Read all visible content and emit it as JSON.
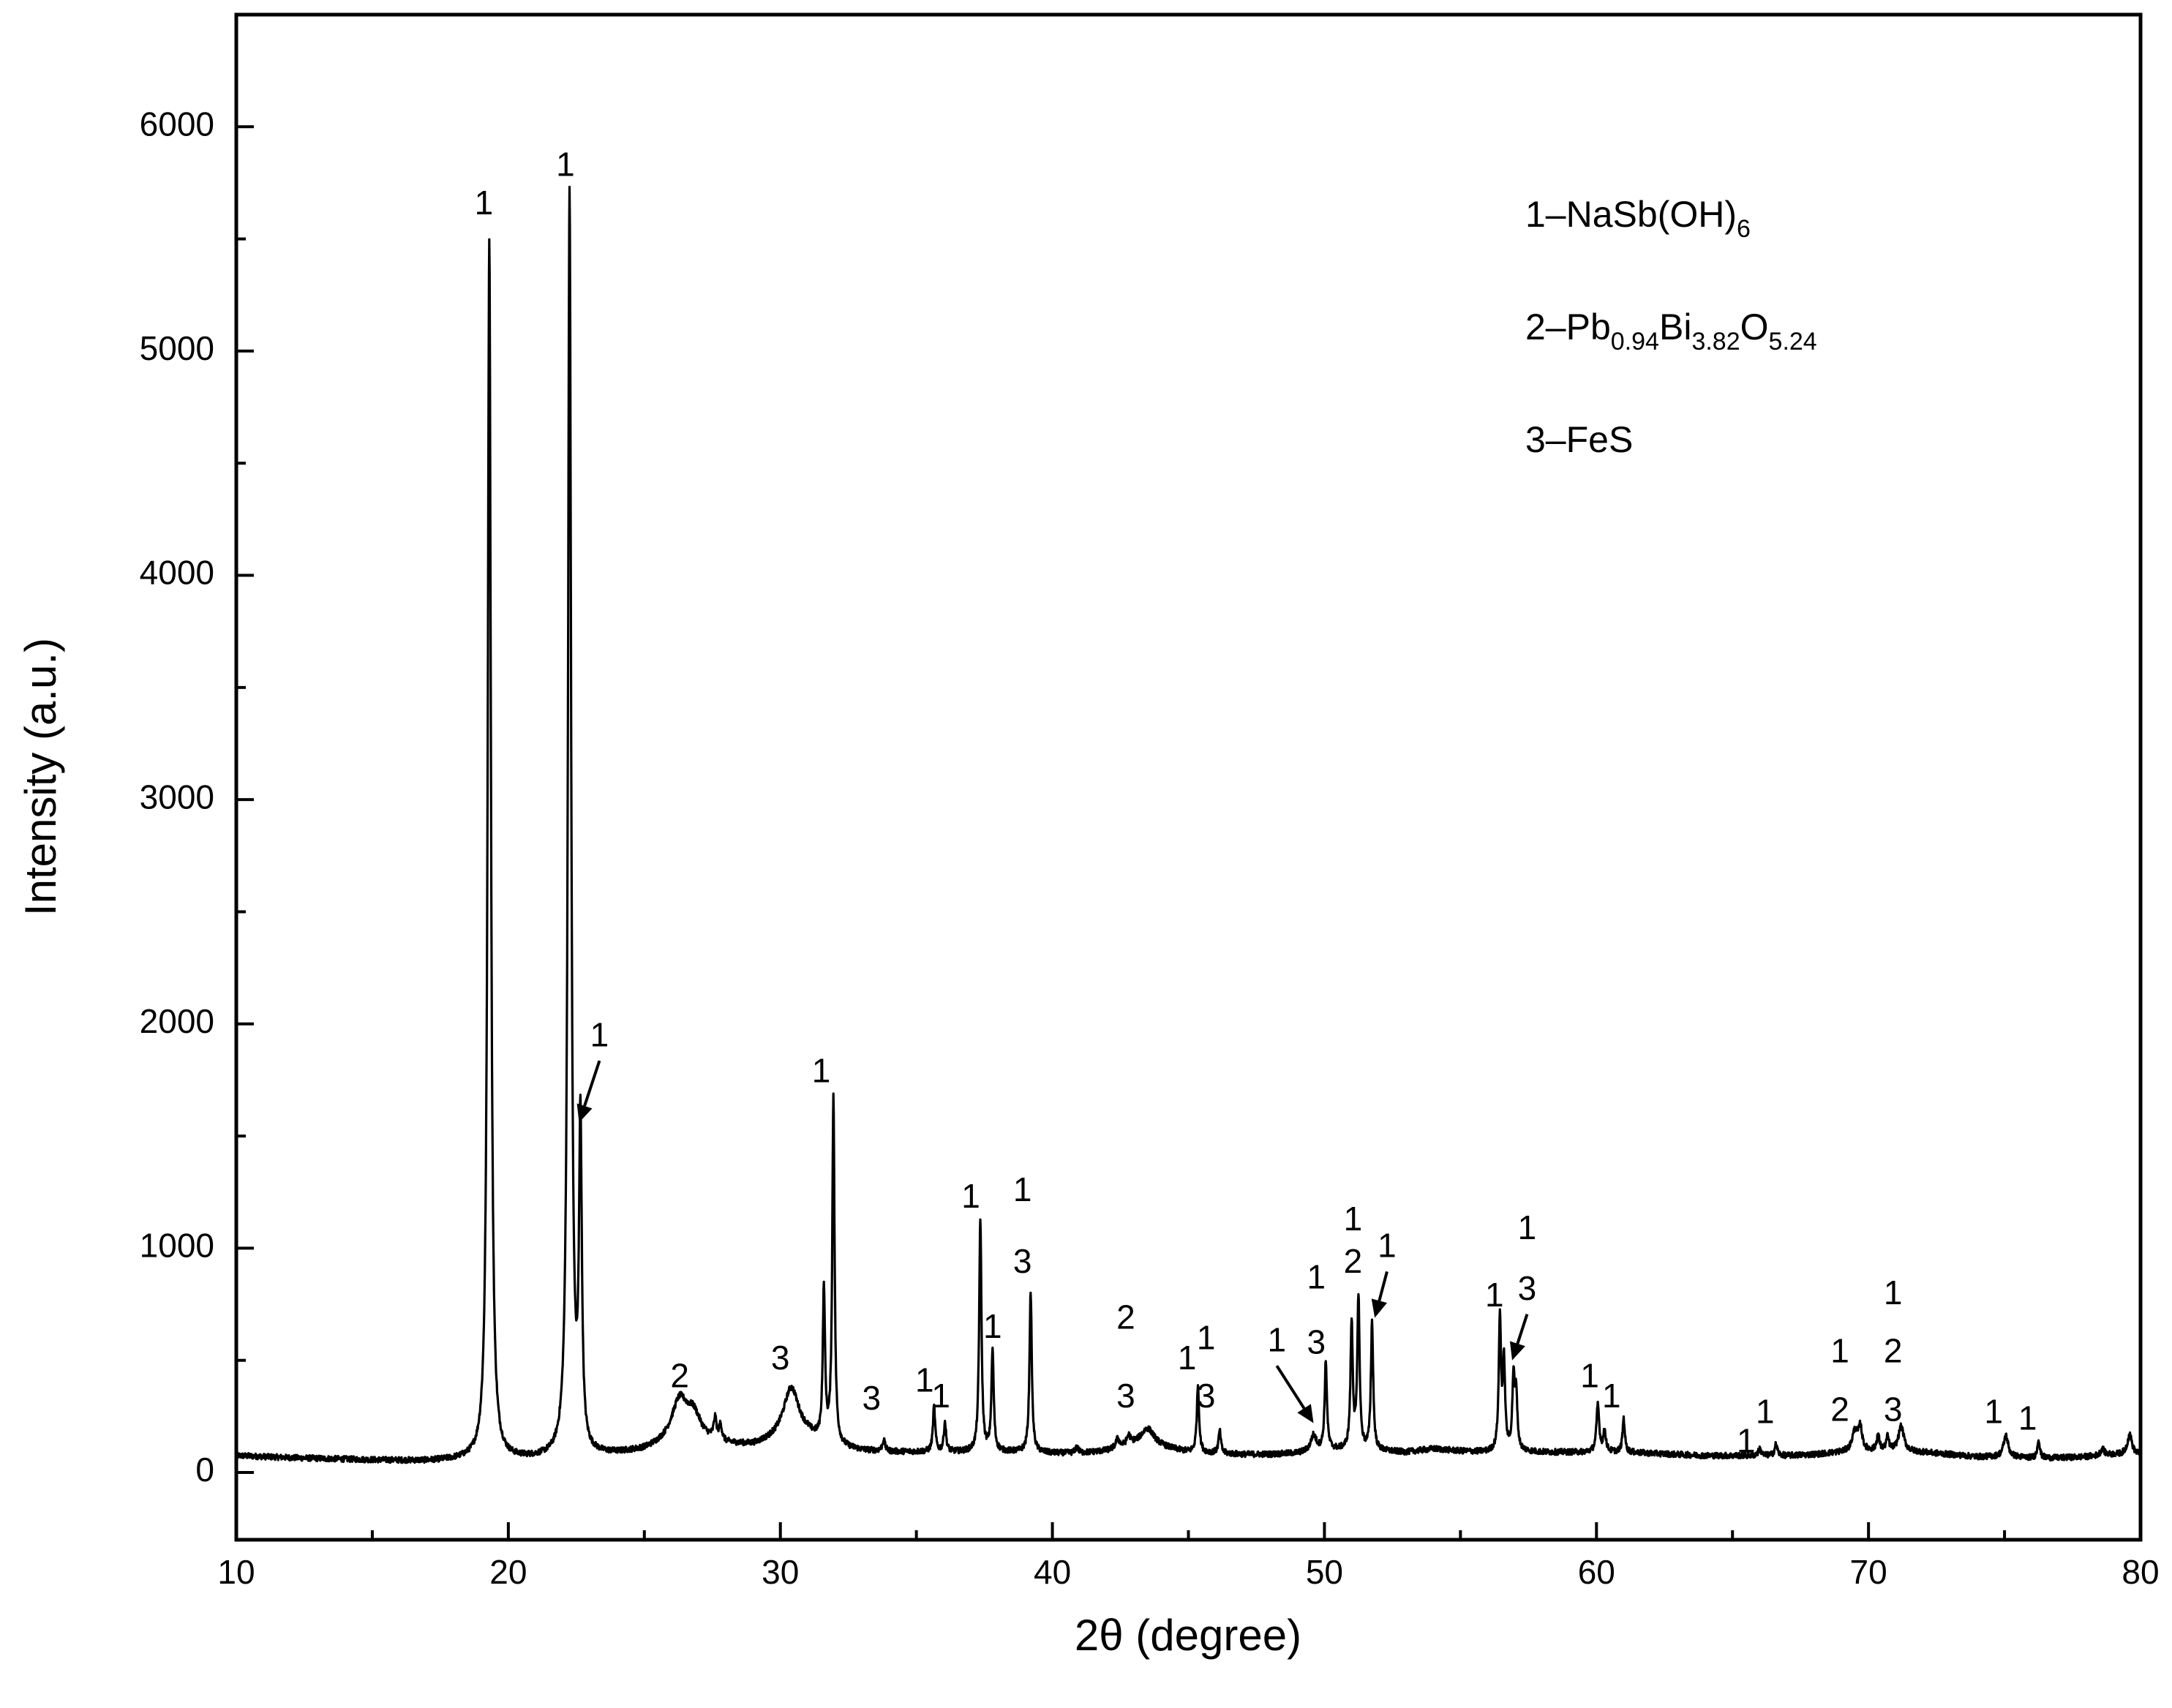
{
  "chart_data": {
    "type": "line",
    "title": "",
    "xlabel": "2θ (degree)",
    "ylabel": "Intensity (a.u.)",
    "xlim": [
      10,
      80
    ],
    "ylim": [
      -300,
      6500
    ],
    "x_ticks": [
      10,
      20,
      30,
      40,
      50,
      60,
      70,
      80
    ],
    "y_ticks": [
      0,
      1000,
      2000,
      3000,
      4000,
      5000,
      6000
    ],
    "grid": false,
    "legend": {
      "position": "top-right",
      "entries": [
        {
          "label": "1–NaSb(OH)",
          "parts": [
            [
              "1–NaSb(OH)",
              ""
            ],
            [
              "6",
              "sub"
            ]
          ]
        },
        {
          "label": "2–Pb0.94Bi3.82O5.24",
          "parts": [
            [
              "2–Pb",
              ""
            ],
            [
              "0.94",
              "sub"
            ],
            [
              "Bi",
              ""
            ],
            [
              "3.82",
              "sub"
            ],
            [
              "O",
              ""
            ],
            [
              "5.24",
              "sub"
            ]
          ]
        },
        {
          "label": "3–FeS",
          "parts": [
            [
              "3–FeS",
              ""
            ]
          ]
        }
      ]
    },
    "baseline": [
      [
        10,
        75
      ],
      [
        12,
        65
      ],
      [
        15,
        55
      ],
      [
        17,
        50
      ],
      [
        18.5,
        55
      ],
      [
        20,
        55
      ],
      [
        21.5,
        60
      ],
      [
        23,
        70
      ],
      [
        24,
        80
      ],
      [
        25,
        95
      ],
      [
        26,
        130
      ],
      [
        27,
        140
      ],
      [
        28,
        120
      ],
      [
        29,
        115
      ],
      [
        30,
        140
      ],
      [
        31,
        150
      ],
      [
        32,
        110
      ],
      [
        33,
        95
      ],
      [
        34,
        90
      ],
      [
        35,
        90
      ],
      [
        36,
        90
      ],
      [
        37,
        90
      ],
      [
        38,
        90
      ],
      [
        39,
        90
      ],
      [
        40,
        85
      ],
      [
        41,
        85
      ],
      [
        42,
        95
      ],
      [
        43,
        120
      ],
      [
        44,
        110
      ],
      [
        45,
        90
      ],
      [
        46,
        85
      ],
      [
        47,
        80
      ],
      [
        48,
        80
      ],
      [
        49,
        85
      ],
      [
        50,
        100
      ],
      [
        51,
        100
      ],
      [
        52,
        95
      ],
      [
        53,
        90
      ],
      [
        54,
        105
      ],
      [
        55,
        95
      ],
      [
        56,
        90
      ],
      [
        57,
        95
      ],
      [
        58,
        90
      ],
      [
        59,
        90
      ],
      [
        60,
        90
      ],
      [
        61,
        90
      ],
      [
        62,
        85
      ],
      [
        63,
        80
      ],
      [
        64,
        75
      ],
      [
        65,
        75
      ],
      [
        66,
        75
      ],
      [
        67,
        75
      ],
      [
        68,
        80
      ],
      [
        69,
        90
      ],
      [
        70,
        95
      ],
      [
        71,
        95
      ],
      [
        72,
        90
      ],
      [
        73,
        80
      ],
      [
        74,
        70
      ],
      [
        75,
        70
      ],
      [
        76,
        65
      ],
      [
        77,
        65
      ],
      [
        78,
        70
      ],
      [
        79,
        80
      ],
      [
        80,
        80
      ]
    ],
    "peaks": [
      [
        19.3,
        5450,
        0.07
      ],
      [
        22.25,
        5630,
        0.07
      ],
      [
        22.65,
        1450,
        0.06
      ],
      [
        26.3,
        180,
        0.35
      ],
      [
        26.8,
        100,
        0.3
      ],
      [
        27.6,
        90,
        0.06
      ],
      [
        27.8,
        70,
        0.06
      ],
      [
        30.4,
        230,
        0.35
      ],
      [
        31.6,
        670,
        0.05
      ],
      [
        31.95,
        1550,
        0.05
      ],
      [
        33.8,
        50,
        0.06
      ],
      [
        35.65,
        200,
        0.05
      ],
      [
        36.05,
        130,
        0.05
      ],
      [
        37.35,
        1040,
        0.05
      ],
      [
        37.8,
        450,
        0.05
      ],
      [
        39.2,
        720,
        0.05
      ],
      [
        40.9,
        30,
        0.06
      ],
      [
        42.4,
        40,
        0.08
      ],
      [
        42.8,
        40,
        0.08
      ],
      [
        43.5,
        80,
        0.3
      ],
      [
        45.35,
        300,
        0.05
      ],
      [
        46.15,
        100,
        0.05
      ],
      [
        49.6,
        70,
        0.12
      ],
      [
        50.05,
        390,
        0.05
      ],
      [
        51.0,
        560,
        0.05
      ],
      [
        51.25,
        680,
        0.05
      ],
      [
        51.75,
        570,
        0.05
      ],
      [
        56.45,
        590,
        0.05
      ],
      [
        56.6,
        380,
        0.05
      ],
      [
        56.95,
        320,
        0.05
      ],
      [
        57.05,
        240,
        0.05
      ],
      [
        60.05,
        210,
        0.06
      ],
      [
        60.3,
        90,
        0.06
      ],
      [
        61.0,
        150,
        0.05
      ],
      [
        66.0,
        30,
        0.06
      ],
      [
        66.6,
        50,
        0.06
      ],
      [
        69.5,
        90,
        0.12
      ],
      [
        69.7,
        100,
        0.08
      ],
      [
        70.35,
        70,
        0.06
      ],
      [
        70.7,
        60,
        0.06
      ],
      [
        71.2,
        110,
        0.12
      ],
      [
        75.05,
        95,
        0.1
      ],
      [
        76.25,
        85,
        0.05
      ],
      [
        78.6,
        30,
        0.08
      ],
      [
        79.6,
        90,
        0.1
      ]
    ],
    "peak_labels": [
      {
        "text": "1",
        "x": 19.1,
        "y": 5650
      },
      {
        "text": "1",
        "x": 22.1,
        "y": 5820
      },
      {
        "text": "1",
        "x": 23.35,
        "y": 1940,
        "arrow_to": [
          22.6,
          1560
        ]
      },
      {
        "text": "2",
        "x": 26.3,
        "y": 420
      },
      {
        "text": "3",
        "x": 30.0,
        "y": 500
      },
      {
        "text": "1",
        "x": 31.5,
        "y": 1780
      },
      {
        "text": "3",
        "x": 33.35,
        "y": 320
      },
      {
        "text": "1",
        "x": 35.3,
        "y": 400
      },
      {
        "text": "1",
        "x": 35.9,
        "y": 330
      },
      {
        "text": "1",
        "x": 37.0,
        "y": 1220
      },
      {
        "text": "1",
        "x": 37.8,
        "y": 640
      },
      {
        "text": "1",
        "x": 38.9,
        "y": 1250
      },
      {
        "text": "3",
        "x": 38.9,
        "y": 930
      },
      {
        "text": "2",
        "x": 42.7,
        "y": 680
      },
      {
        "text": "3",
        "x": 42.7,
        "y": 330
      },
      {
        "text": "1",
        "x": 44.95,
        "y": 500
      },
      {
        "text": "1",
        "x": 45.65,
        "y": 590
      },
      {
        "text": "3",
        "x": 45.65,
        "y": 330
      },
      {
        "text": "1",
        "x": 48.25,
        "y": 580,
        "arrow_to": [
          49.6,
          220
        ]
      },
      {
        "text": "1",
        "x": 49.7,
        "y": 860
      },
      {
        "text": "3",
        "x": 49.7,
        "y": 570
      },
      {
        "text": "1",
        "x": 51.05,
        "y": 1120
      },
      {
        "text": "2",
        "x": 51.05,
        "y": 930
      },
      {
        "text": "1",
        "x": 52.3,
        "y": 1000,
        "arrow_to": [
          51.85,
          690
        ]
      },
      {
        "text": "1",
        "x": 56.25,
        "y": 780
      },
      {
        "text": "1",
        "x": 57.45,
        "y": 1080
      },
      {
        "text": "3",
        "x": 57.45,
        "y": 810,
        "arrow_to": [
          56.9,
          500
        ]
      },
      {
        "text": "1",
        "x": 59.75,
        "y": 420
      },
      {
        "text": "1",
        "x": 60.55,
        "y": 330
      },
      {
        "text": "1",
        "x": 65.5,
        "y": 130
      },
      {
        "text": "1",
        "x": 66.2,
        "y": 260
      },
      {
        "text": "1",
        "x": 68.95,
        "y": 530
      },
      {
        "text": "2",
        "x": 68.95,
        "y": 270
      },
      {
        "text": "1",
        "x": 70.9,
        "y": 790
      },
      {
        "text": "2",
        "x": 70.9,
        "y": 530
      },
      {
        "text": "3",
        "x": 70.9,
        "y": 270
      },
      {
        "text": "1",
        "x": 74.6,
        "y": 260
      },
      {
        "text": "1",
        "x": 75.85,
        "y": 230
      }
    ],
    "colors": {
      "line": "#000000",
      "axes": "#000000",
      "background": "#ffffff"
    }
  }
}
